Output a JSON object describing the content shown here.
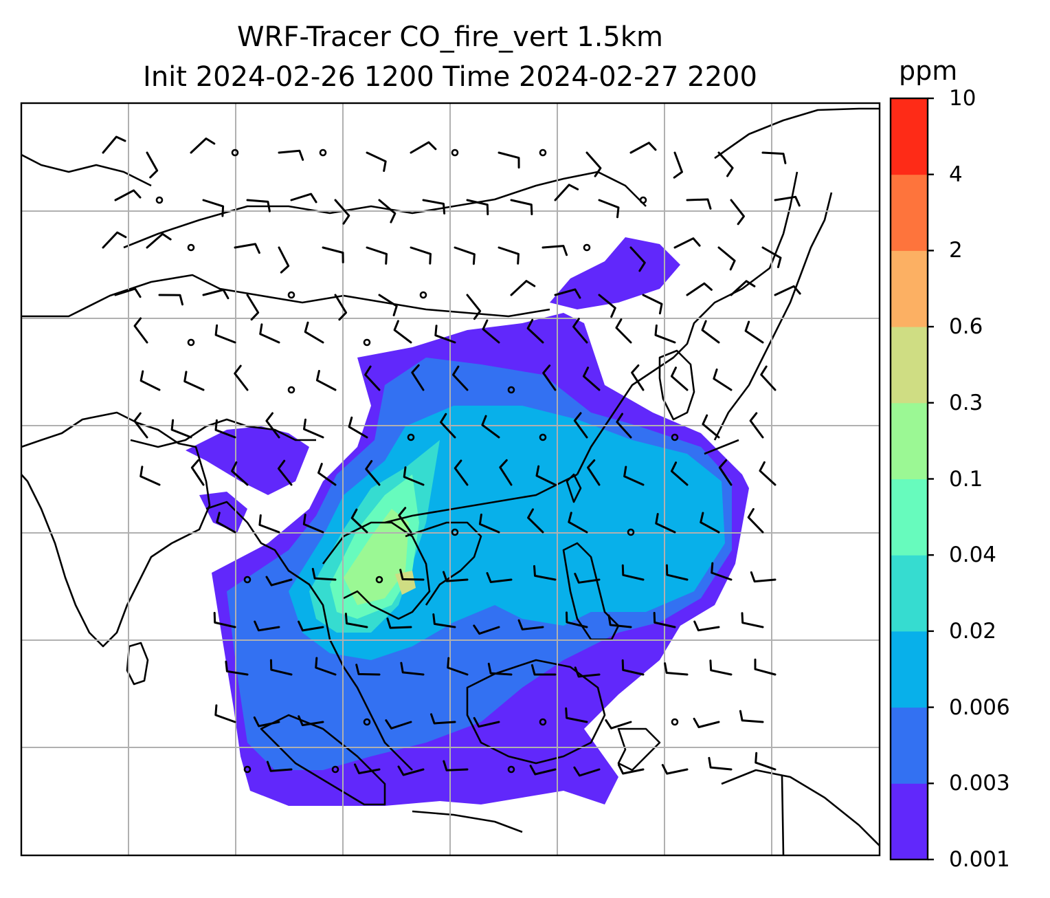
{
  "title": {
    "line1": "WRF-Tracer CO_fire_vert 1.5km",
    "line2": "Init 2024-02-26 1200 Time 2024-02-27 2200"
  },
  "colorbar": {
    "units": "ppm",
    "ticks": [
      "0.001",
      "0.003",
      "0.006",
      "0.02",
      "0.04",
      "0.1",
      "0.3",
      "0.6",
      "2",
      "4",
      "10"
    ],
    "colors": [
      "#6128fb",
      "#3371f2",
      "#08b0ea",
      "#36dcd0",
      "#67fbbd",
      "#9bf894",
      "#cfdd83",
      "#fcb063",
      "#fe743c",
      "#fe2b17"
    ]
  },
  "map": {
    "gridlines": true,
    "wind_barbs": true,
    "variable": "CO_fire_vert",
    "level": "1.5km"
  }
}
